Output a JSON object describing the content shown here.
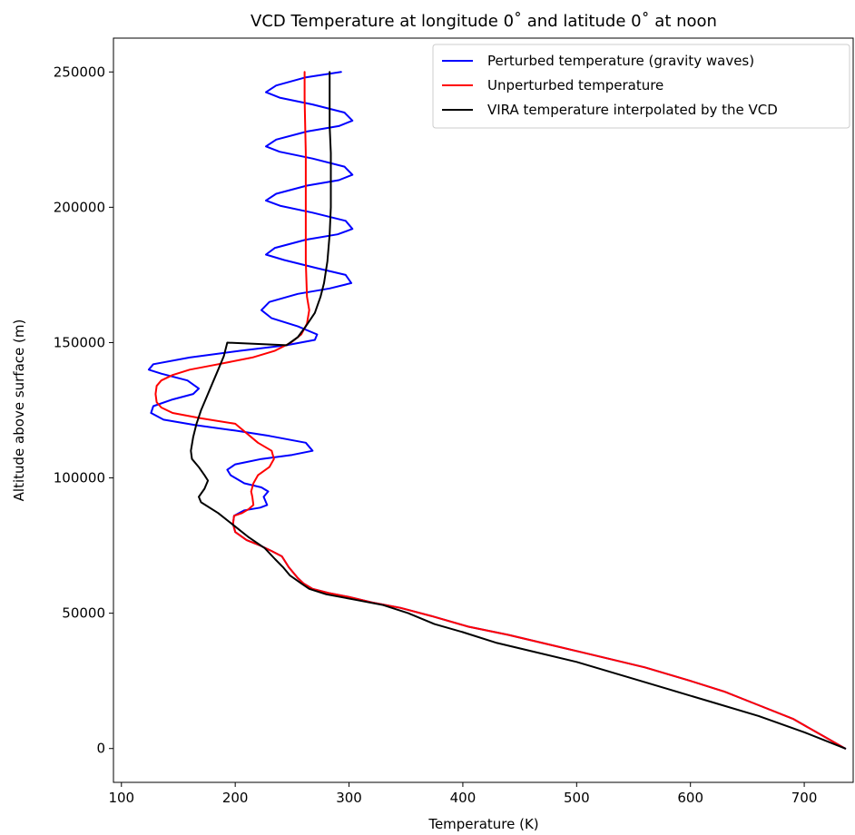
{
  "chart_data": {
    "type": "line",
    "title": "VCD Temperature at longitude 0˚ and latitude 0˚ at noon",
    "xlabel": "Temperature (K)",
    "ylabel": "Altitude above surface (m)",
    "xlim": [
      93,
      743
    ],
    "ylim": [
      -12500,
      262500
    ],
    "xticks": [
      100,
      200,
      300,
      400,
      500,
      600,
      700
    ],
    "yticks": [
      0,
      50000,
      100000,
      150000,
      200000,
      250000
    ],
    "grid": false,
    "legend_position": "top-right",
    "series": [
      {
        "name": "Perturbed temperature (gravity waves)",
        "color": "#0000ff",
        "points": [
          [
            736,
            0
          ],
          [
            715,
            5000
          ],
          [
            690,
            11000
          ],
          [
            660,
            16000
          ],
          [
            630,
            21000
          ],
          [
            600,
            25000
          ],
          [
            560,
            30000
          ],
          [
            520,
            34000
          ],
          [
            480,
            38000
          ],
          [
            440,
            42000
          ],
          [
            405,
            45000
          ],
          [
            372,
            49000
          ],
          [
            345,
            52000
          ],
          [
            320,
            54000
          ],
          [
            300,
            56000
          ],
          [
            282,
            57500
          ],
          [
            268,
            59000
          ],
          [
            260,
            61000
          ],
          [
            255,
            63000
          ],
          [
            247,
            67000
          ],
          [
            241,
            71000
          ],
          [
            232,
            73000
          ],
          [
            222,
            75000
          ],
          [
            210,
            77000
          ],
          [
            200,
            80000
          ],
          [
            198,
            83000
          ],
          [
            199,
            86000
          ],
          [
            208,
            88000
          ],
          [
            222,
            89000
          ],
          [
            228,
            90000
          ],
          [
            225,
            93000
          ],
          [
            229,
            95000
          ],
          [
            223,
            96500
          ],
          [
            208,
            98000
          ],
          [
            196,
            101000
          ],
          [
            193,
            103000
          ],
          [
            200,
            105000
          ],
          [
            223,
            107000
          ],
          [
            250,
            108500
          ],
          [
            268,
            110000
          ],
          [
            262,
            113000
          ],
          [
            230,
            115500
          ],
          [
            200,
            117500
          ],
          [
            165,
            119500
          ],
          [
            137,
            121500
          ],
          [
            126,
            124000
          ],
          [
            128,
            126500
          ],
          [
            145,
            129000
          ],
          [
            163,
            131000
          ],
          [
            168,
            133000
          ],
          [
            158,
            136000
          ],
          [
            135,
            138500
          ],
          [
            124,
            140000
          ],
          [
            128,
            142000
          ],
          [
            160,
            144500
          ],
          [
            205,
            147000
          ],
          [
            245,
            149000
          ],
          [
            270,
            151000
          ],
          [
            272,
            153000
          ],
          [
            255,
            156000
          ],
          [
            232,
            159000
          ],
          [
            223,
            162000
          ],
          [
            230,
            165000
          ],
          [
            255,
            168000
          ],
          [
            283,
            170000
          ],
          [
            302,
            172000
          ],
          [
            297,
            175000
          ],
          [
            272,
            177500
          ],
          [
            243,
            180500
          ],
          [
            227,
            182500
          ],
          [
            235,
            185000
          ],
          [
            262,
            188000
          ],
          [
            290,
            190000
          ],
          [
            303,
            192000
          ],
          [
            297,
            195000
          ],
          [
            268,
            198000
          ],
          [
            240,
            200500
          ],
          [
            227,
            202500
          ],
          [
            236,
            205000
          ],
          [
            263,
            208000
          ],
          [
            291,
            210000
          ],
          [
            303,
            212000
          ],
          [
            296,
            215000
          ],
          [
            268,
            218000
          ],
          [
            239,
            220500
          ],
          [
            227,
            222500
          ],
          [
            236,
            225000
          ],
          [
            263,
            228000
          ],
          [
            291,
            230000
          ],
          [
            303,
            232000
          ],
          [
            296,
            235000
          ],
          [
            268,
            238000
          ],
          [
            239,
            240500
          ],
          [
            227,
            242500
          ],
          [
            236,
            245000
          ],
          [
            262,
            248000
          ],
          [
            293,
            250000
          ]
        ]
      },
      {
        "name": "Unperturbed temperature",
        "color": "#ff0000",
        "points": [
          [
            736,
            0
          ],
          [
            715,
            5000
          ],
          [
            690,
            11000
          ],
          [
            660,
            16000
          ],
          [
            630,
            21000
          ],
          [
            600,
            25000
          ],
          [
            560,
            30000
          ],
          [
            520,
            34000
          ],
          [
            480,
            38000
          ],
          [
            440,
            42000
          ],
          [
            405,
            45000
          ],
          [
            372,
            49000
          ],
          [
            345,
            52000
          ],
          [
            320,
            54000
          ],
          [
            300,
            56000
          ],
          [
            282,
            57500
          ],
          [
            268,
            59000
          ],
          [
            260,
            61000
          ],
          [
            255,
            63000
          ],
          [
            247,
            67000
          ],
          [
            241,
            71000
          ],
          [
            232,
            73000
          ],
          [
            222,
            75000
          ],
          [
            210,
            77000
          ],
          [
            200,
            80000
          ],
          [
            198,
            83000
          ],
          [
            199,
            86000
          ],
          [
            206,
            87000
          ],
          [
            212,
            88500
          ],
          [
            216,
            90000
          ],
          [
            215,
            93000
          ],
          [
            214,
            95000
          ],
          [
            216,
            98000
          ],
          [
            220,
            101000
          ],
          [
            230,
            104000
          ],
          [
            234,
            107000
          ],
          [
            232,
            110000
          ],
          [
            220,
            113000
          ],
          [
            200,
            120000
          ],
          [
            170,
            122000
          ],
          [
            145,
            124000
          ],
          [
            135,
            126000
          ],
          [
            131,
            128000
          ],
          [
            130,
            131000
          ],
          [
            131,
            134000
          ],
          [
            135,
            136000
          ],
          [
            145,
            138000
          ],
          [
            160,
            140000
          ],
          [
            185,
            142000
          ],
          [
            215,
            144500
          ],
          [
            235,
            147000
          ],
          [
            249,
            150000
          ],
          [
            258,
            153000
          ],
          [
            263,
            157000
          ],
          [
            265,
            162000
          ],
          [
            263,
            167000
          ],
          [
            262,
            180000
          ],
          [
            262,
            200000
          ],
          [
            262,
            220000
          ],
          [
            261,
            240000
          ],
          [
            261,
            250000
          ]
        ]
      },
      {
        "name": "VIRA temperature interpolated by the VCD",
        "color": "#000000",
        "points": [
          [
            736,
            0
          ],
          [
            700,
            6000
          ],
          [
            660,
            12000
          ],
          [
            620,
            17000
          ],
          [
            580,
            22000
          ],
          [
            540,
            27000
          ],
          [
            500,
            32000
          ],
          [
            460,
            36000
          ],
          [
            430,
            39000
          ],
          [
            400,
            43000
          ],
          [
            375,
            46000
          ],
          [
            352,
            50000
          ],
          [
            330,
            53000
          ],
          [
            305,
            55000
          ],
          [
            280,
            57000
          ],
          [
            265,
            59000
          ],
          [
            258,
            61000
          ],
          [
            248,
            64000
          ],
          [
            242,
            67000
          ],
          [
            235,
            70000
          ],
          [
            226,
            74000
          ],
          [
            212,
            78000
          ],
          [
            200,
            82000
          ],
          [
            185,
            87000
          ],
          [
            170,
            91000
          ],
          [
            168,
            93000
          ],
          [
            173,
            96000
          ],
          [
            176,
            99000
          ],
          [
            173,
            101000
          ],
          [
            168,
            104000
          ],
          [
            162,
            107000
          ],
          [
            161,
            110000
          ],
          [
            163,
            115000
          ],
          [
            166,
            120000
          ],
          [
            170,
            125000
          ],
          [
            175,
            130000
          ],
          [
            180,
            135000
          ],
          [
            185,
            140000
          ],
          [
            190,
            145000
          ],
          [
            193,
            150000
          ],
          [
            245,
            149000
          ],
          [
            255,
            152000
          ],
          [
            262,
            156000
          ],
          [
            270,
            161000
          ],
          [
            275,
            167000
          ],
          [
            278,
            172000
          ],
          [
            281,
            180000
          ],
          [
            283,
            190000
          ],
          [
            284,
            200000
          ],
          [
            284,
            210000
          ],
          [
            284,
            220000
          ],
          [
            283,
            230000
          ],
          [
            283,
            240000
          ],
          [
            283,
            250000
          ]
        ]
      }
    ]
  }
}
